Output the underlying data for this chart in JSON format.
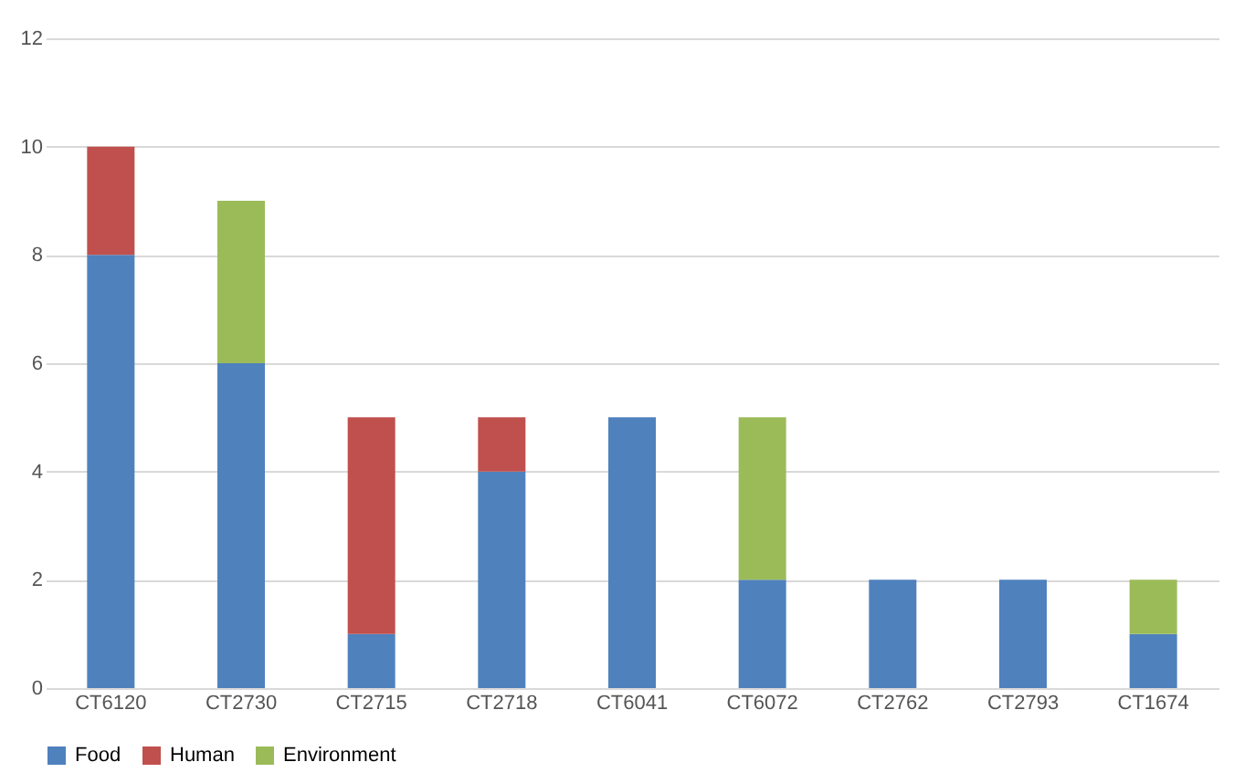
{
  "chart_data": {
    "type": "bar",
    "stacked": true,
    "categories": [
      "CT6120",
      "CT2730",
      "CT2715",
      "CT2718",
      "CT6041",
      "CT6072",
      "CT2762",
      "CT2793",
      "CT1674"
    ],
    "series": [
      {
        "name": "Food",
        "color": "#4f81bd",
        "values": [
          8,
          6,
          1,
          4,
          5,
          2,
          2,
          2,
          1
        ]
      },
      {
        "name": "Human",
        "color": "#c0504d",
        "values": [
          2,
          null,
          4,
          1,
          null,
          null,
          null,
          null,
          null
        ]
      },
      {
        "name": "Environment",
        "color": "#9bbb59",
        "values": [
          null,
          3,
          null,
          null,
          null,
          3,
          null,
          null,
          1
        ]
      }
    ],
    "ylim": [
      0,
      12
    ],
    "yticks": [
      0,
      2,
      4,
      6,
      8,
      10,
      12
    ],
    "grid": "y",
    "legend": "bottom"
  }
}
